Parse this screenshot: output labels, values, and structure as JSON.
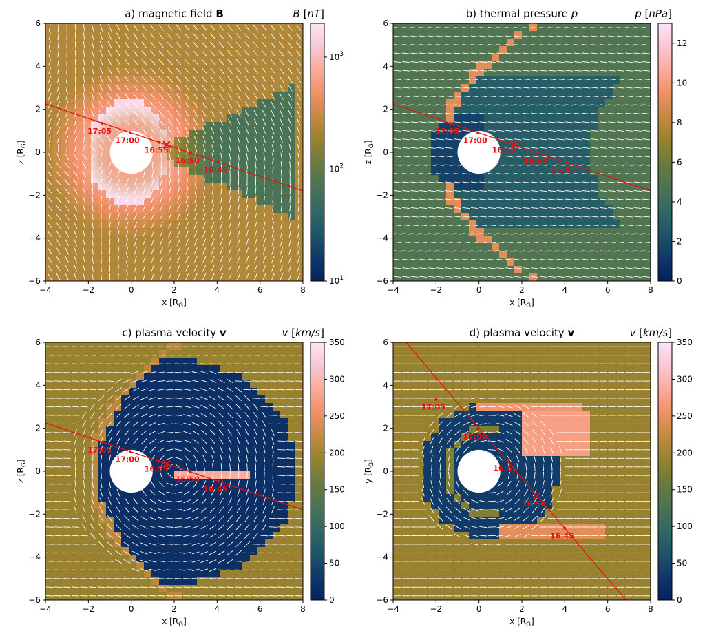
{
  "chart_data": [
    {
      "type": "heatmap",
      "title": "a) magnetic field",
      "title_bold": "B",
      "xlabel": "x [R",
      "xlabel_sub": "G",
      "ylabel": "z [R",
      "ylabel_sub": "G",
      "xlim": [
        -4,
        8
      ],
      "ylim": [
        -6,
        6
      ],
      "xticks": [
        "−4",
        "−2",
        "0",
        "2",
        "4",
        "6",
        "8"
      ],
      "yticks": [
        "−6",
        "−4",
        "−2",
        "0",
        "2",
        "4",
        "6"
      ],
      "colorbar": {
        "label_main": "B",
        "label_unit": "nT",
        "scale": "log",
        "range": [
          10,
          2000
        ],
        "ticks": [
          {
            "value": 10,
            "base": "10",
            "exp": "1"
          },
          {
            "value": 100,
            "base": "10",
            "exp": "2"
          },
          {
            "value": 1000,
            "base": "10",
            "exp": "3"
          }
        ]
      },
      "trajectory": {
        "line": [
          [
            -4,
            2.25
          ],
          [
            8,
            -1.8
          ]
        ],
        "points": [
          {
            "label": "17:05",
            "x": -1.35,
            "y": 1.35
          },
          {
            "label": "17:00",
            "x": -0.05,
            "y": 0.92
          },
          {
            "label": "16:55",
            "x": 1.3,
            "y": 0.46
          },
          {
            "label": "16:50",
            "x": 2.75,
            "y": -0.02
          },
          {
            "label": "16:45",
            "x": 4.05,
            "y": -0.46
          }
        ],
        "cross": {
          "x": 1.65,
          "y": 0.35
        }
      }
    },
    {
      "type": "heatmap",
      "title": "b) thermal pressure",
      "title_italic": "p",
      "xlabel": "x [R",
      "xlabel_sub": "G",
      "ylabel": "z [R",
      "ylabel_sub": "G",
      "xlim": [
        -4,
        8
      ],
      "ylim": [
        -6,
        6
      ],
      "xticks": [
        "−4",
        "−2",
        "0",
        "2",
        "4",
        "6",
        "8"
      ],
      "yticks": [
        "−6",
        "−4",
        "−2",
        "0",
        "2",
        "4",
        "6"
      ],
      "colorbar": {
        "label_main": "p",
        "label_unit": "nPa",
        "scale": "linear",
        "range": [
          0,
          13
        ],
        "ticks": [
          {
            "value": 0,
            "text": "0"
          },
          {
            "value": 2,
            "text": "2"
          },
          {
            "value": 4,
            "text": "4"
          },
          {
            "value": 6,
            "text": "6"
          },
          {
            "value": 8,
            "text": "8"
          },
          {
            "value": 10,
            "text": "10"
          },
          {
            "value": 12,
            "text": "12"
          }
        ]
      },
      "trajectory": {
        "line": [
          [
            -4,
            2.25
          ],
          [
            8,
            -1.8
          ]
        ],
        "points": [
          {
            "label": "17:05",
            "x": -1.35,
            "y": 1.35
          },
          {
            "label": "17:00",
            "x": -0.05,
            "y": 0.92
          },
          {
            "label": "16:55",
            "x": 1.3,
            "y": 0.46
          },
          {
            "label": "16:50",
            "x": 2.75,
            "y": -0.02
          },
          {
            "label": "16:45",
            "x": 4.05,
            "y": -0.46
          }
        ],
        "cross": {
          "x": 1.65,
          "y": 0.35
        }
      }
    },
    {
      "type": "heatmap",
      "title": "c) plasma velocity",
      "title_bold": "v",
      "xlabel": "x [R",
      "xlabel_sub": "G",
      "ylabel": "z [R",
      "ylabel_sub": "G",
      "xlim": [
        -4,
        8
      ],
      "ylim": [
        -6,
        6
      ],
      "xticks": [
        "−4",
        "−2",
        "0",
        "2",
        "4",
        "6",
        "8"
      ],
      "yticks": [
        "−6",
        "−4",
        "−2",
        "0",
        "2",
        "4",
        "6"
      ],
      "colorbar": {
        "label_main": "v",
        "label_unit": "km/s",
        "scale": "linear",
        "range": [
          0,
          350
        ],
        "ticks": [
          {
            "value": 0,
            "text": "0"
          },
          {
            "value": 50,
            "text": "50"
          },
          {
            "value": 100,
            "text": "100"
          },
          {
            "value": 150,
            "text": "150"
          },
          {
            "value": 200,
            "text": "200"
          },
          {
            "value": 250,
            "text": "250"
          },
          {
            "value": 300,
            "text": "300"
          },
          {
            "value": 350,
            "text": "350"
          }
        ]
      },
      "trajectory": {
        "line": [
          [
            -4,
            2.25
          ],
          [
            8,
            -1.8
          ]
        ],
        "points": [
          {
            "label": "17:05",
            "x": -1.35,
            "y": 1.35
          },
          {
            "label": "17:00",
            "x": -0.05,
            "y": 0.92
          },
          {
            "label": "16:55",
            "x": 1.3,
            "y": 0.46
          },
          {
            "label": "16:50",
            "x": 2.75,
            "y": -0.02
          },
          {
            "label": "16:45",
            "x": 4.05,
            "y": -0.46
          }
        ],
        "cross": {
          "x": 1.65,
          "y": 0.35
        }
      }
    },
    {
      "type": "heatmap",
      "title": "d) plasma velocity",
      "title_bold": "v",
      "xlabel": "x [R",
      "xlabel_sub": "G",
      "ylabel": "y [R",
      "ylabel_sub": "G",
      "xlim": [
        -4,
        8
      ],
      "ylim": [
        -6,
        6
      ],
      "xticks": [
        "−4",
        "−2",
        "0",
        "2",
        "4",
        "6",
        "8"
      ],
      "yticks": [
        "−6",
        "−4",
        "−2",
        "0",
        "2",
        "4",
        "6"
      ],
      "colorbar": {
        "label_main": "v",
        "label_unit": "km/s",
        "scale": "linear",
        "range": [
          0,
          350
        ],
        "ticks": [
          {
            "value": 0,
            "text": "0"
          },
          {
            "value": 50,
            "text": "50"
          },
          {
            "value": 100,
            "text": "100"
          },
          {
            "value": 150,
            "text": "150"
          },
          {
            "value": 200,
            "text": "200"
          },
          {
            "value": 250,
            "text": "250"
          },
          {
            "value": 300,
            "text": "300"
          },
          {
            "value": 350,
            "text": "350"
          }
        ]
      },
      "trajectory": {
        "line": [
          [
            -3.4,
            6.0
          ],
          [
            6.85,
            -6.0
          ]
        ],
        "points": [
          {
            "label": "17:05",
            "x": -2.0,
            "y": 3.35
          },
          {
            "label": "17:00",
            "x": -0.05,
            "y": 1.97
          },
          {
            "label": "16:55",
            "x": 1.35,
            "y": 0.5
          },
          {
            "label": "16:50",
            "x": 2.7,
            "y": -1.15
          },
          {
            "label": "16:45",
            "x": 4.0,
            "y": -2.65
          }
        ],
        "cross": {
          "x": 2.7,
          "y": -1.15
        }
      }
    }
  ],
  "colors": {
    "trajectory": "#e8110f",
    "trajectory_label": "#e8110f",
    "arrow": "#ffffff",
    "colormap": [
      "#07205f",
      "#0f3868",
      "#1e5568",
      "#336865",
      "#4c7355",
      "#6a7a3f",
      "#96822f",
      "#c38a40",
      "#f09066",
      "#fbaa9a",
      "#f9c6d7",
      "#fde4f6"
    ]
  }
}
